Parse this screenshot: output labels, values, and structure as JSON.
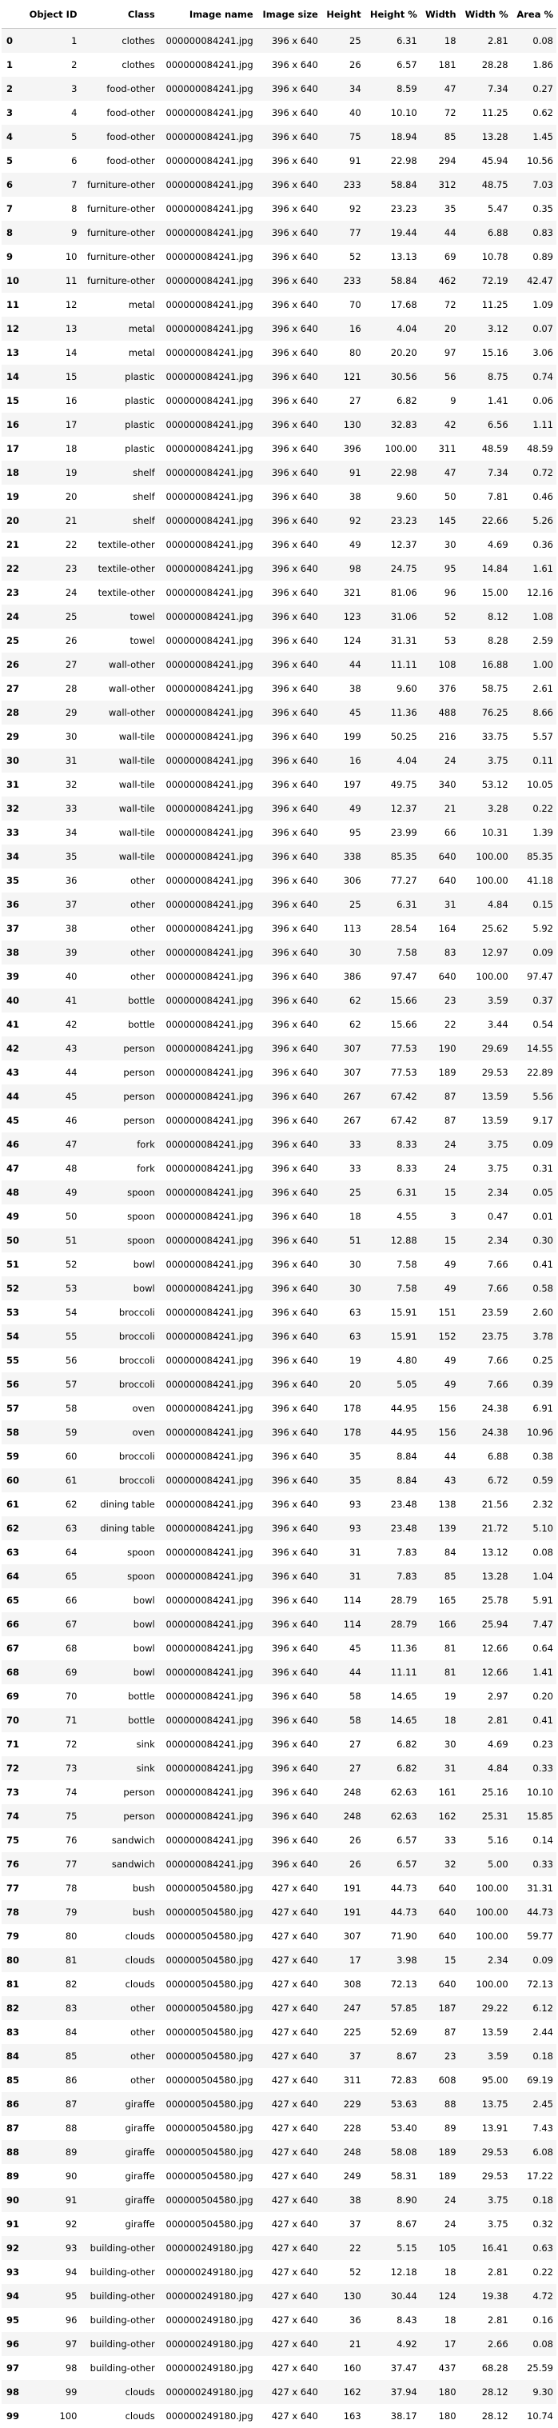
{
  "columns": [
    "",
    "Object ID",
    "Class",
    "Image name",
    "Image size",
    "Height",
    "Height %",
    "Width",
    "Width %",
    "Area %"
  ],
  "rows": [
    [
      "0",
      "1",
      "clothes",
      "000000084241.jpg",
      "396 x 640",
      "25",
      "6.31",
      "18",
      "2.81",
      "0.08"
    ],
    [
      "1",
      "2",
      "clothes",
      "000000084241.jpg",
      "396 x 640",
      "26",
      "6.57",
      "181",
      "28.28",
      "1.86"
    ],
    [
      "2",
      "3",
      "food-other",
      "000000084241.jpg",
      "396 x 640",
      "34",
      "8.59",
      "47",
      "7.34",
      "0.27"
    ],
    [
      "3",
      "4",
      "food-other",
      "000000084241.jpg",
      "396 x 640",
      "40",
      "10.10",
      "72",
      "11.25",
      "0.62"
    ],
    [
      "4",
      "5",
      "food-other",
      "000000084241.jpg",
      "396 x 640",
      "75",
      "18.94",
      "85",
      "13.28",
      "1.45"
    ],
    [
      "5",
      "6",
      "food-other",
      "000000084241.jpg",
      "396 x 640",
      "91",
      "22.98",
      "294",
      "45.94",
      "10.56"
    ],
    [
      "6",
      "7",
      "furniture-other",
      "000000084241.jpg",
      "396 x 640",
      "233",
      "58.84",
      "312",
      "48.75",
      "7.03"
    ],
    [
      "7",
      "8",
      "furniture-other",
      "000000084241.jpg",
      "396 x 640",
      "92",
      "23.23",
      "35",
      "5.47",
      "0.35"
    ],
    [
      "8",
      "9",
      "furniture-other",
      "000000084241.jpg",
      "396 x 640",
      "77",
      "19.44",
      "44",
      "6.88",
      "0.83"
    ],
    [
      "9",
      "10",
      "furniture-other",
      "000000084241.jpg",
      "396 x 640",
      "52",
      "13.13",
      "69",
      "10.78",
      "0.89"
    ],
    [
      "10",
      "11",
      "furniture-other",
      "000000084241.jpg",
      "396 x 640",
      "233",
      "58.84",
      "462",
      "72.19",
      "42.47"
    ],
    [
      "11",
      "12",
      "metal",
      "000000084241.jpg",
      "396 x 640",
      "70",
      "17.68",
      "72",
      "11.25",
      "1.09"
    ],
    [
      "12",
      "13",
      "metal",
      "000000084241.jpg",
      "396 x 640",
      "16",
      "4.04",
      "20",
      "3.12",
      "0.07"
    ],
    [
      "13",
      "14",
      "metal",
      "000000084241.jpg",
      "396 x 640",
      "80",
      "20.20",
      "97",
      "15.16",
      "3.06"
    ],
    [
      "14",
      "15",
      "plastic",
      "000000084241.jpg",
      "396 x 640",
      "121",
      "30.56",
      "56",
      "8.75",
      "0.74"
    ],
    [
      "15",
      "16",
      "plastic",
      "000000084241.jpg",
      "396 x 640",
      "27",
      "6.82",
      "9",
      "1.41",
      "0.06"
    ],
    [
      "16",
      "17",
      "plastic",
      "000000084241.jpg",
      "396 x 640",
      "130",
      "32.83",
      "42",
      "6.56",
      "1.11"
    ],
    [
      "17",
      "18",
      "plastic",
      "000000084241.jpg",
      "396 x 640",
      "396",
      "100.00",
      "311",
      "48.59",
      "48.59"
    ],
    [
      "18",
      "19",
      "shelf",
      "000000084241.jpg",
      "396 x 640",
      "91",
      "22.98",
      "47",
      "7.34",
      "0.72"
    ],
    [
      "19",
      "20",
      "shelf",
      "000000084241.jpg",
      "396 x 640",
      "38",
      "9.60",
      "50",
      "7.81",
      "0.46"
    ],
    [
      "20",
      "21",
      "shelf",
      "000000084241.jpg",
      "396 x 640",
      "92",
      "23.23",
      "145",
      "22.66",
      "5.26"
    ],
    [
      "21",
      "22",
      "textile-other",
      "000000084241.jpg",
      "396 x 640",
      "49",
      "12.37",
      "30",
      "4.69",
      "0.36"
    ],
    [
      "22",
      "23",
      "textile-other",
      "000000084241.jpg",
      "396 x 640",
      "98",
      "24.75",
      "95",
      "14.84",
      "1.61"
    ],
    [
      "23",
      "24",
      "textile-other",
      "000000084241.jpg",
      "396 x 640",
      "321",
      "81.06",
      "96",
      "15.00",
      "12.16"
    ],
    [
      "24",
      "25",
      "towel",
      "000000084241.jpg",
      "396 x 640",
      "123",
      "31.06",
      "52",
      "8.12",
      "1.08"
    ],
    [
      "25",
      "26",
      "towel",
      "000000084241.jpg",
      "396 x 640",
      "124",
      "31.31",
      "53",
      "8.28",
      "2.59"
    ],
    [
      "26",
      "27",
      "wall-other",
      "000000084241.jpg",
      "396 x 640",
      "44",
      "11.11",
      "108",
      "16.88",
      "1.00"
    ],
    [
      "27",
      "28",
      "wall-other",
      "000000084241.jpg",
      "396 x 640",
      "38",
      "9.60",
      "376",
      "58.75",
      "2.61"
    ],
    [
      "28",
      "29",
      "wall-other",
      "000000084241.jpg",
      "396 x 640",
      "45",
      "11.36",
      "488",
      "76.25",
      "8.66"
    ],
    [
      "29",
      "30",
      "wall-tile",
      "000000084241.jpg",
      "396 x 640",
      "199",
      "50.25",
      "216",
      "33.75",
      "5.57"
    ],
    [
      "30",
      "31",
      "wall-tile",
      "000000084241.jpg",
      "396 x 640",
      "16",
      "4.04",
      "24",
      "3.75",
      "0.11"
    ],
    [
      "31",
      "32",
      "wall-tile",
      "000000084241.jpg",
      "396 x 640",
      "197",
      "49.75",
      "340",
      "53.12",
      "10.05"
    ],
    [
      "32",
      "33",
      "wall-tile",
      "000000084241.jpg",
      "396 x 640",
      "49",
      "12.37",
      "21",
      "3.28",
      "0.22"
    ],
    [
      "33",
      "34",
      "wall-tile",
      "000000084241.jpg",
      "396 x 640",
      "95",
      "23.99",
      "66",
      "10.31",
      "1.39"
    ],
    [
      "34",
      "35",
      "wall-tile",
      "000000084241.jpg",
      "396 x 640",
      "338",
      "85.35",
      "640",
      "100.00",
      "85.35"
    ],
    [
      "35",
      "36",
      "other",
      "000000084241.jpg",
      "396 x 640",
      "306",
      "77.27",
      "640",
      "100.00",
      "41.18"
    ],
    [
      "36",
      "37",
      "other",
      "000000084241.jpg",
      "396 x 640",
      "25",
      "6.31",
      "31",
      "4.84",
      "0.15"
    ],
    [
      "37",
      "38",
      "other",
      "000000084241.jpg",
      "396 x 640",
      "113",
      "28.54",
      "164",
      "25.62",
      "5.92"
    ],
    [
      "38",
      "39",
      "other",
      "000000084241.jpg",
      "396 x 640",
      "30",
      "7.58",
      "83",
      "12.97",
      "0.09"
    ],
    [
      "39",
      "40",
      "other",
      "000000084241.jpg",
      "396 x 640",
      "386",
      "97.47",
      "640",
      "100.00",
      "97.47"
    ],
    [
      "40",
      "41",
      "bottle",
      "000000084241.jpg",
      "396 x 640",
      "62",
      "15.66",
      "23",
      "3.59",
      "0.37"
    ],
    [
      "41",
      "42",
      "bottle",
      "000000084241.jpg",
      "396 x 640",
      "62",
      "15.66",
      "22",
      "3.44",
      "0.54"
    ],
    [
      "42",
      "43",
      "person",
      "000000084241.jpg",
      "396 x 640",
      "307",
      "77.53",
      "190",
      "29.69",
      "14.55"
    ],
    [
      "43",
      "44",
      "person",
      "000000084241.jpg",
      "396 x 640",
      "307",
      "77.53",
      "189",
      "29.53",
      "22.89"
    ],
    [
      "44",
      "45",
      "person",
      "000000084241.jpg",
      "396 x 640",
      "267",
      "67.42",
      "87",
      "13.59",
      "5.56"
    ],
    [
      "45",
      "46",
      "person",
      "000000084241.jpg",
      "396 x 640",
      "267",
      "67.42",
      "87",
      "13.59",
      "9.17"
    ],
    [
      "46",
      "47",
      "fork",
      "000000084241.jpg",
      "396 x 640",
      "33",
      "8.33",
      "24",
      "3.75",
      "0.09"
    ],
    [
      "47",
      "48",
      "fork",
      "000000084241.jpg",
      "396 x 640",
      "33",
      "8.33",
      "24",
      "3.75",
      "0.31"
    ],
    [
      "48",
      "49",
      "spoon",
      "000000084241.jpg",
      "396 x 640",
      "25",
      "6.31",
      "15",
      "2.34",
      "0.05"
    ],
    [
      "49",
      "50",
      "spoon",
      "000000084241.jpg",
      "396 x 640",
      "18",
      "4.55",
      "3",
      "0.47",
      "0.01"
    ],
    [
      "50",
      "51",
      "spoon",
      "000000084241.jpg",
      "396 x 640",
      "51",
      "12.88",
      "15",
      "2.34",
      "0.30"
    ],
    [
      "51",
      "52",
      "bowl",
      "000000084241.jpg",
      "396 x 640",
      "30",
      "7.58",
      "49",
      "7.66",
      "0.41"
    ],
    [
      "52",
      "53",
      "bowl",
      "000000084241.jpg",
      "396 x 640",
      "30",
      "7.58",
      "49",
      "7.66",
      "0.58"
    ],
    [
      "53",
      "54",
      "broccoli",
      "000000084241.jpg",
      "396 x 640",
      "63",
      "15.91",
      "151",
      "23.59",
      "2.60"
    ],
    [
      "54",
      "55",
      "broccoli",
      "000000084241.jpg",
      "396 x 640",
      "63",
      "15.91",
      "152",
      "23.75",
      "3.78"
    ],
    [
      "55",
      "56",
      "broccoli",
      "000000084241.jpg",
      "396 x 640",
      "19",
      "4.80",
      "49",
      "7.66",
      "0.25"
    ],
    [
      "56",
      "57",
      "broccoli",
      "000000084241.jpg",
      "396 x 640",
      "20",
      "5.05",
      "49",
      "7.66",
      "0.39"
    ],
    [
      "57",
      "58",
      "oven",
      "000000084241.jpg",
      "396 x 640",
      "178",
      "44.95",
      "156",
      "24.38",
      "6.91"
    ],
    [
      "58",
      "59",
      "oven",
      "000000084241.jpg",
      "396 x 640",
      "178",
      "44.95",
      "156",
      "24.38",
      "10.96"
    ],
    [
      "59",
      "60",
      "broccoli",
      "000000084241.jpg",
      "396 x 640",
      "35",
      "8.84",
      "44",
      "6.88",
      "0.38"
    ],
    [
      "60",
      "61",
      "broccoli",
      "000000084241.jpg",
      "396 x 640",
      "35",
      "8.84",
      "43",
      "6.72",
      "0.59"
    ],
    [
      "61",
      "62",
      "dining table",
      "000000084241.jpg",
      "396 x 640",
      "93",
      "23.48",
      "138",
      "21.56",
      "2.32"
    ],
    [
      "62",
      "63",
      "dining table",
      "000000084241.jpg",
      "396 x 640",
      "93",
      "23.48",
      "139",
      "21.72",
      "5.10"
    ],
    [
      "63",
      "64",
      "spoon",
      "000000084241.jpg",
      "396 x 640",
      "31",
      "7.83",
      "84",
      "13.12",
      "0.08"
    ],
    [
      "64",
      "65",
      "spoon",
      "000000084241.jpg",
      "396 x 640",
      "31",
      "7.83",
      "85",
      "13.28",
      "1.04"
    ],
    [
      "65",
      "66",
      "bowl",
      "000000084241.jpg",
      "396 x 640",
      "114",
      "28.79",
      "165",
      "25.78",
      "5.91"
    ],
    [
      "66",
      "67",
      "bowl",
      "000000084241.jpg",
      "396 x 640",
      "114",
      "28.79",
      "166",
      "25.94",
      "7.47"
    ],
    [
      "67",
      "68",
      "bowl",
      "000000084241.jpg",
      "396 x 640",
      "45",
      "11.36",
      "81",
      "12.66",
      "0.64"
    ],
    [
      "68",
      "69",
      "bowl",
      "000000084241.jpg",
      "396 x 640",
      "44",
      "11.11",
      "81",
      "12.66",
      "1.41"
    ],
    [
      "69",
      "70",
      "bottle",
      "000000084241.jpg",
      "396 x 640",
      "58",
      "14.65",
      "19",
      "2.97",
      "0.20"
    ],
    [
      "70",
      "71",
      "bottle",
      "000000084241.jpg",
      "396 x 640",
      "58",
      "14.65",
      "18",
      "2.81",
      "0.41"
    ],
    [
      "71",
      "72",
      "sink",
      "000000084241.jpg",
      "396 x 640",
      "27",
      "6.82",
      "30",
      "4.69",
      "0.23"
    ],
    [
      "72",
      "73",
      "sink",
      "000000084241.jpg",
      "396 x 640",
      "27",
      "6.82",
      "31",
      "4.84",
      "0.33"
    ],
    [
      "73",
      "74",
      "person",
      "000000084241.jpg",
      "396 x 640",
      "248",
      "62.63",
      "161",
      "25.16",
      "10.10"
    ],
    [
      "74",
      "75",
      "person",
      "000000084241.jpg",
      "396 x 640",
      "248",
      "62.63",
      "162",
      "25.31",
      "15.85"
    ],
    [
      "75",
      "76",
      "sandwich",
      "000000084241.jpg",
      "396 x 640",
      "26",
      "6.57",
      "33",
      "5.16",
      "0.14"
    ],
    [
      "76",
      "77",
      "sandwich",
      "000000084241.jpg",
      "396 x 640",
      "26",
      "6.57",
      "32",
      "5.00",
      "0.33"
    ],
    [
      "77",
      "78",
      "bush",
      "000000504580.jpg",
      "427 x 640",
      "191",
      "44.73",
      "640",
      "100.00",
      "31.31"
    ],
    [
      "78",
      "79",
      "bush",
      "000000504580.jpg",
      "427 x 640",
      "191",
      "44.73",
      "640",
      "100.00",
      "44.73"
    ],
    [
      "79",
      "80",
      "clouds",
      "000000504580.jpg",
      "427 x 640",
      "307",
      "71.90",
      "640",
      "100.00",
      "59.77"
    ],
    [
      "80",
      "81",
      "clouds",
      "000000504580.jpg",
      "427 x 640",
      "17",
      "3.98",
      "15",
      "2.34",
      "0.09"
    ],
    [
      "81",
      "82",
      "clouds",
      "000000504580.jpg",
      "427 x 640",
      "308",
      "72.13",
      "640",
      "100.00",
      "72.13"
    ],
    [
      "82",
      "83",
      "other",
      "000000504580.jpg",
      "427 x 640",
      "247",
      "57.85",
      "187",
      "29.22",
      "6.12"
    ],
    [
      "83",
      "84",
      "other",
      "000000504580.jpg",
      "427 x 640",
      "225",
      "52.69",
      "87",
      "13.59",
      "2.44"
    ],
    [
      "84",
      "85",
      "other",
      "000000504580.jpg",
      "427 x 640",
      "37",
      "8.67",
      "23",
      "3.59",
      "0.18"
    ],
    [
      "85",
      "86",
      "other",
      "000000504580.jpg",
      "427 x 640",
      "311",
      "72.83",
      "608",
      "95.00",
      "69.19"
    ],
    [
      "86",
      "87",
      "giraffe",
      "000000504580.jpg",
      "427 x 640",
      "229",
      "53.63",
      "88",
      "13.75",
      "2.45"
    ],
    [
      "87",
      "88",
      "giraffe",
      "000000504580.jpg",
      "427 x 640",
      "228",
      "53.40",
      "89",
      "13.91",
      "7.43"
    ],
    [
      "88",
      "89",
      "giraffe",
      "000000504580.jpg",
      "427 x 640",
      "248",
      "58.08",
      "189",
      "29.53",
      "6.08"
    ],
    [
      "89",
      "90",
      "giraffe",
      "000000504580.jpg",
      "427 x 640",
      "249",
      "58.31",
      "189",
      "29.53",
      "17.22"
    ],
    [
      "90",
      "91",
      "giraffe",
      "000000504580.jpg",
      "427 x 640",
      "38",
      "8.90",
      "24",
      "3.75",
      "0.18"
    ],
    [
      "91",
      "92",
      "giraffe",
      "000000504580.jpg",
      "427 x 640",
      "37",
      "8.67",
      "24",
      "3.75",
      "0.32"
    ],
    [
      "92",
      "93",
      "building-other",
      "000000249180.jpg",
      "427 x 640",
      "22",
      "5.15",
      "105",
      "16.41",
      "0.63"
    ],
    [
      "93",
      "94",
      "building-other",
      "000000249180.jpg",
      "427 x 640",
      "52",
      "12.18",
      "18",
      "2.81",
      "0.22"
    ],
    [
      "94",
      "95",
      "building-other",
      "000000249180.jpg",
      "427 x 640",
      "130",
      "30.44",
      "124",
      "19.38",
      "4.72"
    ],
    [
      "95",
      "96",
      "building-other",
      "000000249180.jpg",
      "427 x 640",
      "36",
      "8.43",
      "18",
      "2.81",
      "0.16"
    ],
    [
      "96",
      "97",
      "building-other",
      "000000249180.jpg",
      "427 x 640",
      "21",
      "4.92",
      "17",
      "2.66",
      "0.08"
    ],
    [
      "97",
      "98",
      "building-other",
      "000000249180.jpg",
      "427 x 640",
      "160",
      "37.47",
      "437",
      "68.28",
      "25.59"
    ],
    [
      "98",
      "99",
      "clouds",
      "000000249180.jpg",
      "427 x 640",
      "162",
      "37.94",
      "180",
      "28.12",
      "9.30"
    ],
    [
      "99",
      "100",
      "clouds",
      "000000249180.jpg",
      "427 x 640",
      "163",
      "38.17",
      "180",
      "28.12",
      "10.74"
    ]
  ]
}
